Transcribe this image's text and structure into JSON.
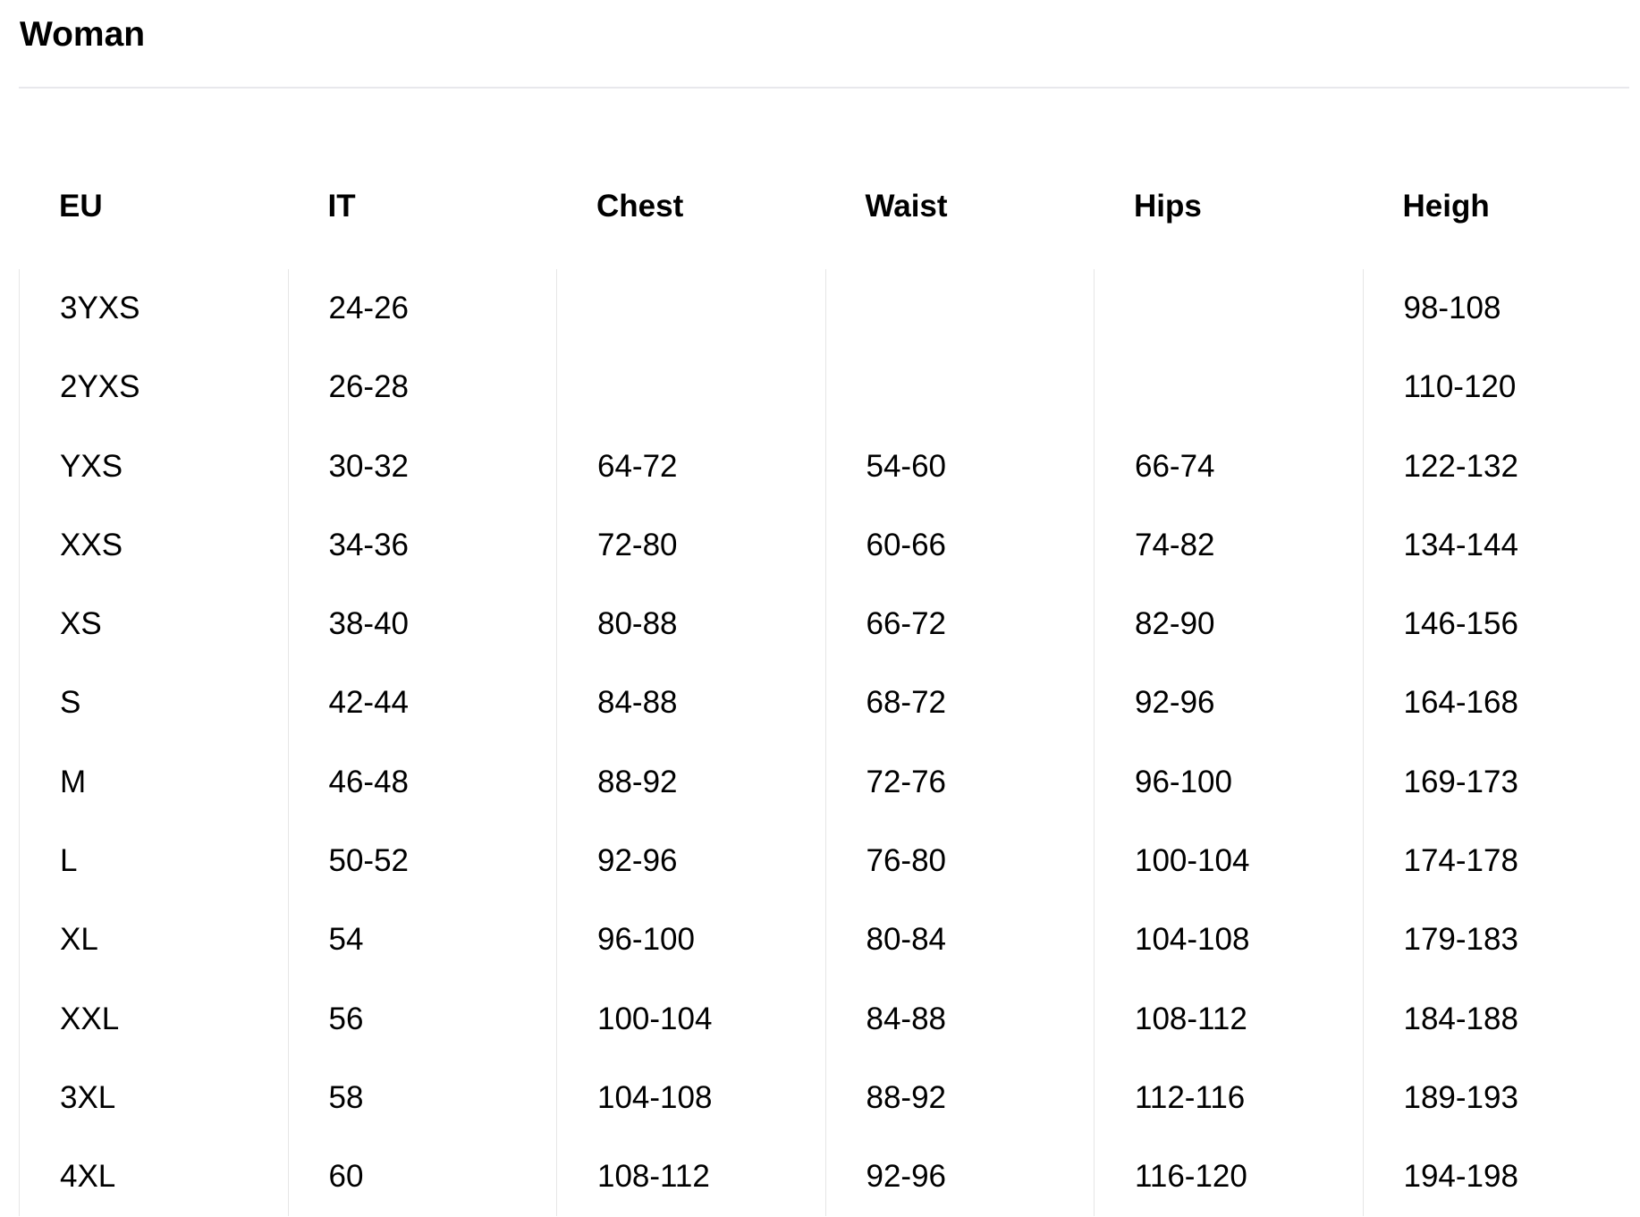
{
  "title": "Woman",
  "table": {
    "headers": [
      "EU",
      "IT",
      "Chest",
      "Waist",
      "Hips",
      "Heigh"
    ],
    "rows": [
      [
        "3YXS",
        "24-26",
        "",
        "",
        "",
        "98-108"
      ],
      [
        "2YXS",
        "26-28",
        "",
        "",
        "",
        "110-120"
      ],
      [
        "YXS",
        "30-32",
        "64-72",
        "54-60",
        "66-74",
        "122-132"
      ],
      [
        "XXS",
        "34-36",
        "72-80",
        "60-66",
        "74-82",
        "134-144"
      ],
      [
        "XS",
        "38-40",
        "80-88",
        "66-72",
        "82-90",
        "146-156"
      ],
      [
        "S",
        "42-44",
        "84-88",
        "68-72",
        "92-96",
        "164-168"
      ],
      [
        "M",
        "46-48",
        "88-92",
        "72-76",
        "96-100",
        "169-173"
      ],
      [
        "L",
        "50-52",
        "92-96",
        "76-80",
        "100-104",
        "174-178"
      ],
      [
        "XL",
        "54",
        "96-100",
        "80-84",
        "104-108",
        "179-183"
      ],
      [
        "XXL",
        "56",
        "100-104",
        "84-88",
        "108-112",
        "184-188"
      ],
      [
        "3XL",
        "58",
        "104-108",
        "88-92",
        "112-116",
        "189-193"
      ],
      [
        "4XL",
        "60",
        "108-112",
        "92-96",
        "116-120",
        "194-198"
      ]
    ]
  }
}
